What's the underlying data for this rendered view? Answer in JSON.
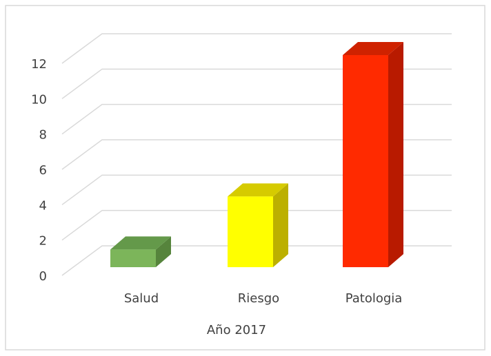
{
  "chart_data": {
    "type": "bar3d",
    "categories": [
      "Salud",
      "Riesgo",
      "Patologia"
    ],
    "values": [
      1,
      4,
      12
    ],
    "colors": [
      "#7cb55a",
      "#ffff00",
      "#ff2a00"
    ],
    "side_colors": [
      "#56843c",
      "#bcb000",
      "#b81a00"
    ],
    "top_colors": [
      "#64994a",
      "#d6cb00",
      "#cf2200"
    ],
    "x_label": "Año  2017",
    "ylim": [
      0,
      12
    ],
    "yticks": [
      0,
      2,
      4,
      6,
      8,
      10,
      12
    ],
    "grid": true
  }
}
